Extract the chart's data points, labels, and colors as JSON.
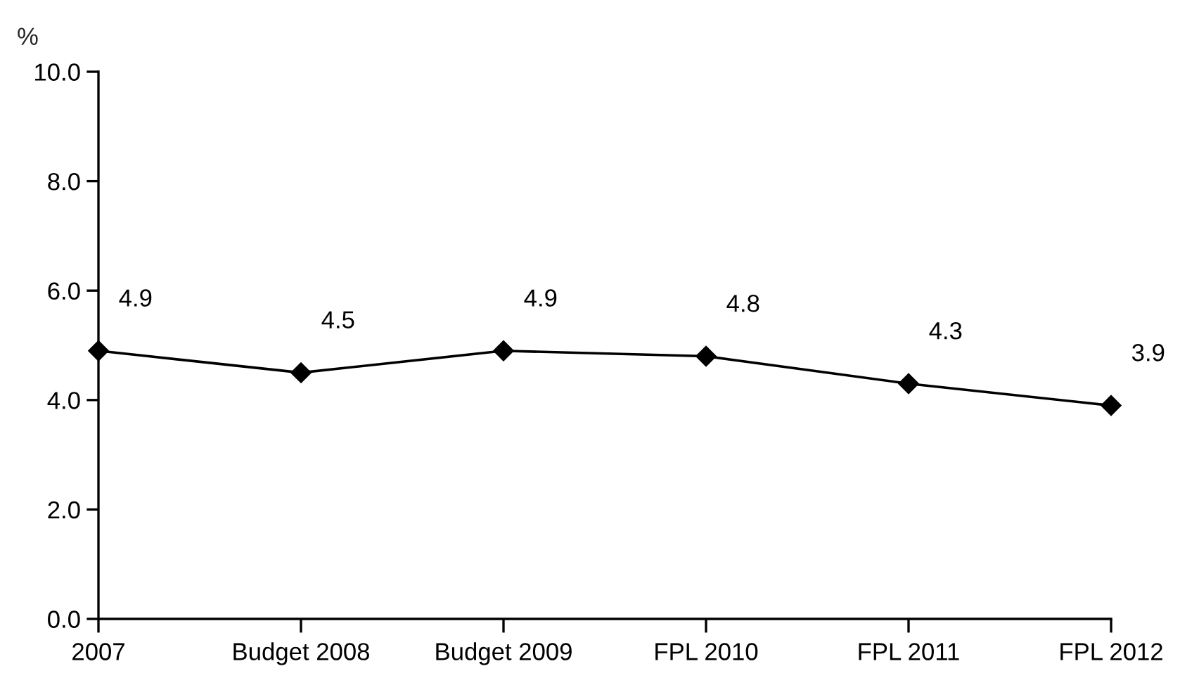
{
  "chart_data": {
    "type": "line",
    "ylabel": "%",
    "categories": [
      "2007",
      "Budget 2008",
      "Budget 2009",
      "FPL 2010",
      "FPL 2011",
      "FPL 2012"
    ],
    "series": [
      {
        "color": "#000000",
        "values": [
          4.9,
          4.5,
          4.9,
          4.8,
          4.3,
          3.9
        ]
      }
    ],
    "ylim": [
      0,
      10
    ],
    "yticks": [
      {
        "value": 0,
        "label": "0.0"
      },
      {
        "value": 2,
        "label": "2.0"
      },
      {
        "value": 4,
        "label": "4.0"
      },
      {
        "value": 6,
        "label": "6.0"
      },
      {
        "value": 8,
        "label": "8.0"
      },
      {
        "value": 10,
        "label": "10.0"
      }
    ],
    "grid": false,
    "marker": "diamond",
    "line_style": "solid",
    "data_labels": true
  }
}
